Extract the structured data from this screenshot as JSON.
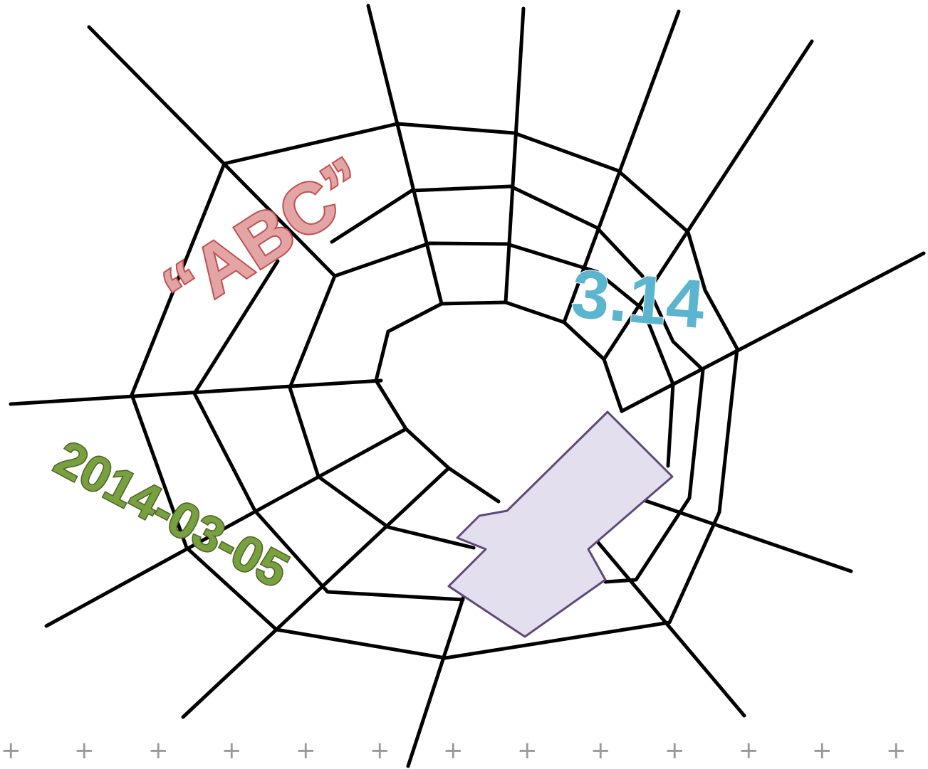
{
  "labels": {
    "abc": "“ABC”",
    "pi": "3.14",
    "date": "2014-03-05"
  },
  "colors": {
    "web": "#000000",
    "abc_fill": "#e2a4a4",
    "abc_stroke": "#c0504d",
    "pi_fill": "#5bb5cf",
    "pi_stroke": "#ffffff",
    "date_fill": "#77a03e",
    "date_stroke": "#4f6228",
    "shape_fill": "#e3dfee",
    "shape_stroke": "#5f497a",
    "plus": "#999999"
  },
  "markers": {
    "plus_glyph": "+"
  }
}
